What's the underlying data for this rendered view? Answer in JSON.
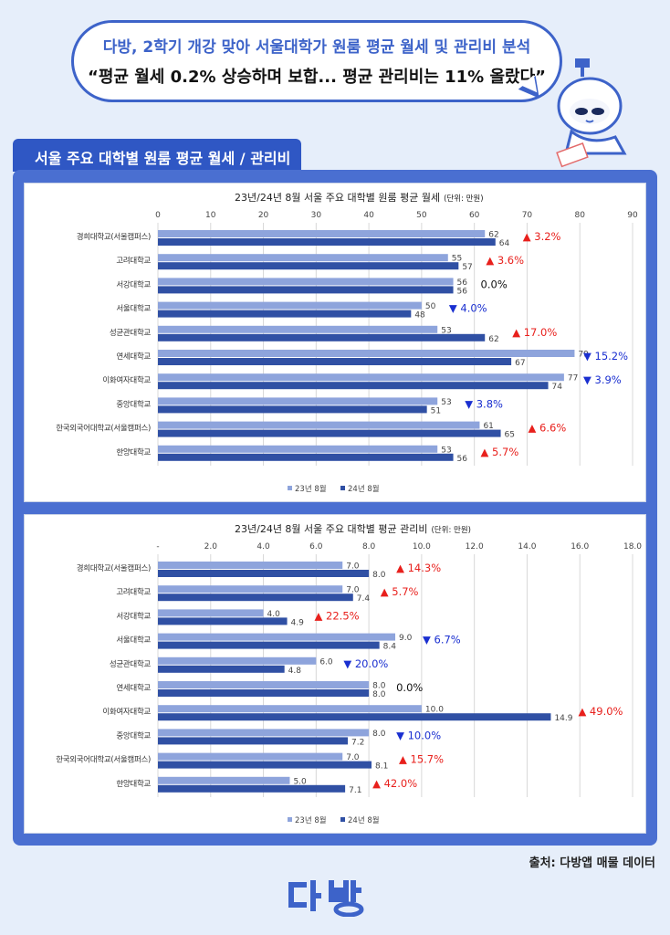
{
  "header": {
    "line1": "다방, 2학기 개강 맞아 서울대학가 원룸 평균 월세 및 관리비 분석",
    "line2": "“평균 월세 0.2% 상승하며 보합... 평균 관리비는 11% 올랐다”"
  },
  "section_tab": "서울 주요 대학별 원룸 평균 월세 / 관리비",
  "source": "출처: 다방앱 매물 데이터",
  "logo_text": "다방",
  "colors": {
    "accent": "#3d63c9",
    "series_2023": "#8ea4dc",
    "series_2024": "#3050a4",
    "up": "#e8201c",
    "down": "#1a2fd0",
    "flat": "#111111"
  },
  "chart_data": [
    {
      "type": "bar",
      "orientation": "horizontal",
      "title": "23년/24년 8월 서울 주요 대학별 원룸 평균 월세",
      "unit": "(단위: 만원)",
      "categories": [
        "경희대학교(서울캠퍼스)",
        "고려대학교",
        "서강대학교",
        "서울대학교",
        "성균관대학교",
        "연세대학교",
        "이화여자대학교",
        "중앙대학교",
        "한국외국어대학교(서울캠퍼스)",
        "한양대학교"
      ],
      "series": [
        {
          "name": "23년 8월",
          "values": [
            62,
            55,
            56,
            50,
            53,
            79,
            77,
            53,
            61,
            53
          ],
          "labels": [
            "62",
            "55",
            "56",
            "50",
            "53",
            "79",
            "77",
            "53",
            "61",
            "53"
          ]
        },
        {
          "name": "24년 8월",
          "values": [
            64,
            57,
            56,
            48,
            62,
            67,
            74,
            51,
            65,
            56
          ],
          "labels": [
            "64",
            "57",
            "56",
            "48",
            "62",
            "67",
            "74",
            "51",
            "65",
            "56"
          ]
        }
      ],
      "changes": [
        {
          "text": "▲ 3.2%",
          "dir": "up"
        },
        {
          "text": "▲ 3.6%",
          "dir": "up"
        },
        {
          "text": "0.0%",
          "dir": "flat"
        },
        {
          "text": "▼ 4.0%",
          "dir": "down"
        },
        {
          "text": "▲ 17.0%",
          "dir": "up"
        },
        {
          "text": "▼ 15.2%",
          "dir": "down"
        },
        {
          "text": "▼ 3.9%",
          "dir": "down"
        },
        {
          "text": "▼ 3.8%",
          "dir": "down"
        },
        {
          "text": "▲ 6.6%",
          "dir": "up"
        },
        {
          "text": "▲ 5.7%",
          "dir": "up"
        }
      ],
      "xlim": [
        0,
        90
      ],
      "ticks": [
        "0",
        "10",
        "20",
        "30",
        "40",
        "50",
        "60",
        "70",
        "80",
        "90"
      ],
      "grid": true,
      "legend_position": "bottom"
    },
    {
      "type": "bar",
      "orientation": "horizontal",
      "title": "23년/24년 8월 서울 주요 대학별 평균 관리비",
      "unit": "(단위: 만원)",
      "categories": [
        "경희대학교(서울캠퍼스)",
        "고려대학교",
        "서강대학교",
        "서울대학교",
        "성균관대학교",
        "연세대학교",
        "이화여자대학교",
        "중앙대학교",
        "한국외국어대학교(서울캠퍼스)",
        "한양대학교"
      ],
      "series": [
        {
          "name": "23년 8월",
          "values": [
            7.0,
            7.0,
            4.0,
            9.0,
            6.0,
            8.0,
            10.0,
            8.0,
            7.0,
            5.0
          ],
          "labels": [
            "7.0",
            "7.0",
            "4.0",
            "9.0",
            "6.0",
            "8.0",
            "10.0",
            "8.0",
            "7.0",
            "5.0"
          ]
        },
        {
          "name": "24년 8월",
          "values": [
            8.0,
            7.4,
            4.9,
            8.4,
            4.8,
            8.0,
            14.9,
            7.2,
            8.1,
            7.1
          ],
          "labels": [
            "8.0",
            "7.4",
            "4.9",
            "8.4",
            "4.8",
            "8.0",
            "14.9",
            "7.2",
            "8.1",
            "7.1"
          ]
        }
      ],
      "changes": [
        {
          "text": "▲ 14.3%",
          "dir": "up"
        },
        {
          "text": "▲ 5.7%",
          "dir": "up"
        },
        {
          "text": "▲ 22.5%",
          "dir": "up"
        },
        {
          "text": "▼ 6.7%",
          "dir": "down"
        },
        {
          "text": "▼ 20.0%",
          "dir": "down"
        },
        {
          "text": "0.0%",
          "dir": "flat"
        },
        {
          "text": "▲ 49.0%",
          "dir": "up"
        },
        {
          "text": "▼ 10.0%",
          "dir": "down"
        },
        {
          "text": "▲ 15.7%",
          "dir": "up"
        },
        {
          "text": "▲ 42.0%",
          "dir": "up"
        }
      ],
      "xlim": [
        0,
        18
      ],
      "ticks": [
        "-",
        "2.0",
        "4.0",
        "6.0",
        "8.0",
        "10.0",
        "12.0",
        "14.0",
        "16.0",
        "18.0"
      ],
      "grid": true,
      "legend_position": "bottom"
    }
  ]
}
